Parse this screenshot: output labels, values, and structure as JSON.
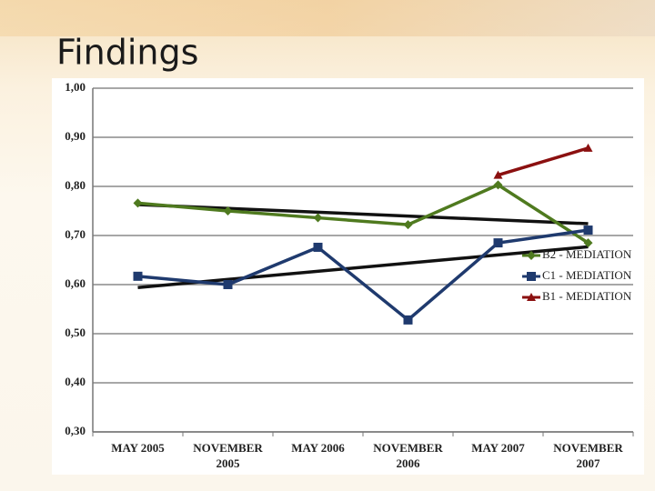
{
  "title": "Findings",
  "chart_data": {
    "type": "line",
    "categories": [
      "MAY 2005",
      "NOVEMBER 2005",
      "MAY 2006",
      "NOVEMBER 2006",
      "MAY 2007",
      "NOVEMBER 2007"
    ],
    "series": [
      {
        "name": "B2 - MEDIATION",
        "color": "#4f7a1f",
        "marker": "diamond",
        "values": [
          0.766,
          0.75,
          0.736,
          0.722,
          0.803,
          0.685
        ]
      },
      {
        "name": "C1 - MEDIATION",
        "color": "#1f3a6e",
        "marker": "square",
        "values": [
          0.617,
          0.6,
          0.676,
          0.528,
          0.685,
          0.711
        ]
      },
      {
        "name": "B1 - MEDIATION",
        "color": "#8b1010",
        "marker": "triangle",
        "values": [
          null,
          null,
          null,
          null,
          0.823,
          0.878
        ]
      }
    ],
    "trendlines": [
      {
        "color": "#111111",
        "values": [
          0.763,
          0.724
        ]
      },
      {
        "color": "#111111",
        "values": [
          0.594,
          0.677
        ]
      }
    ],
    "ylim": [
      0.3,
      1.0
    ],
    "yticks": [
      {
        "value": 0.3,
        "label": "0,30"
      },
      {
        "value": 0.4,
        "label": "0,40"
      },
      {
        "value": 0.5,
        "label": "0,50"
      },
      {
        "value": 0.6,
        "label": "0,60"
      },
      {
        "value": 0.7,
        "label": "0,70"
      },
      {
        "value": 0.8,
        "label": "0,80"
      },
      {
        "value": 0.9,
        "label": "0,90"
      },
      {
        "value": 1.0,
        "label": "1,00"
      }
    ],
    "grid": true,
    "legend": "right"
  }
}
